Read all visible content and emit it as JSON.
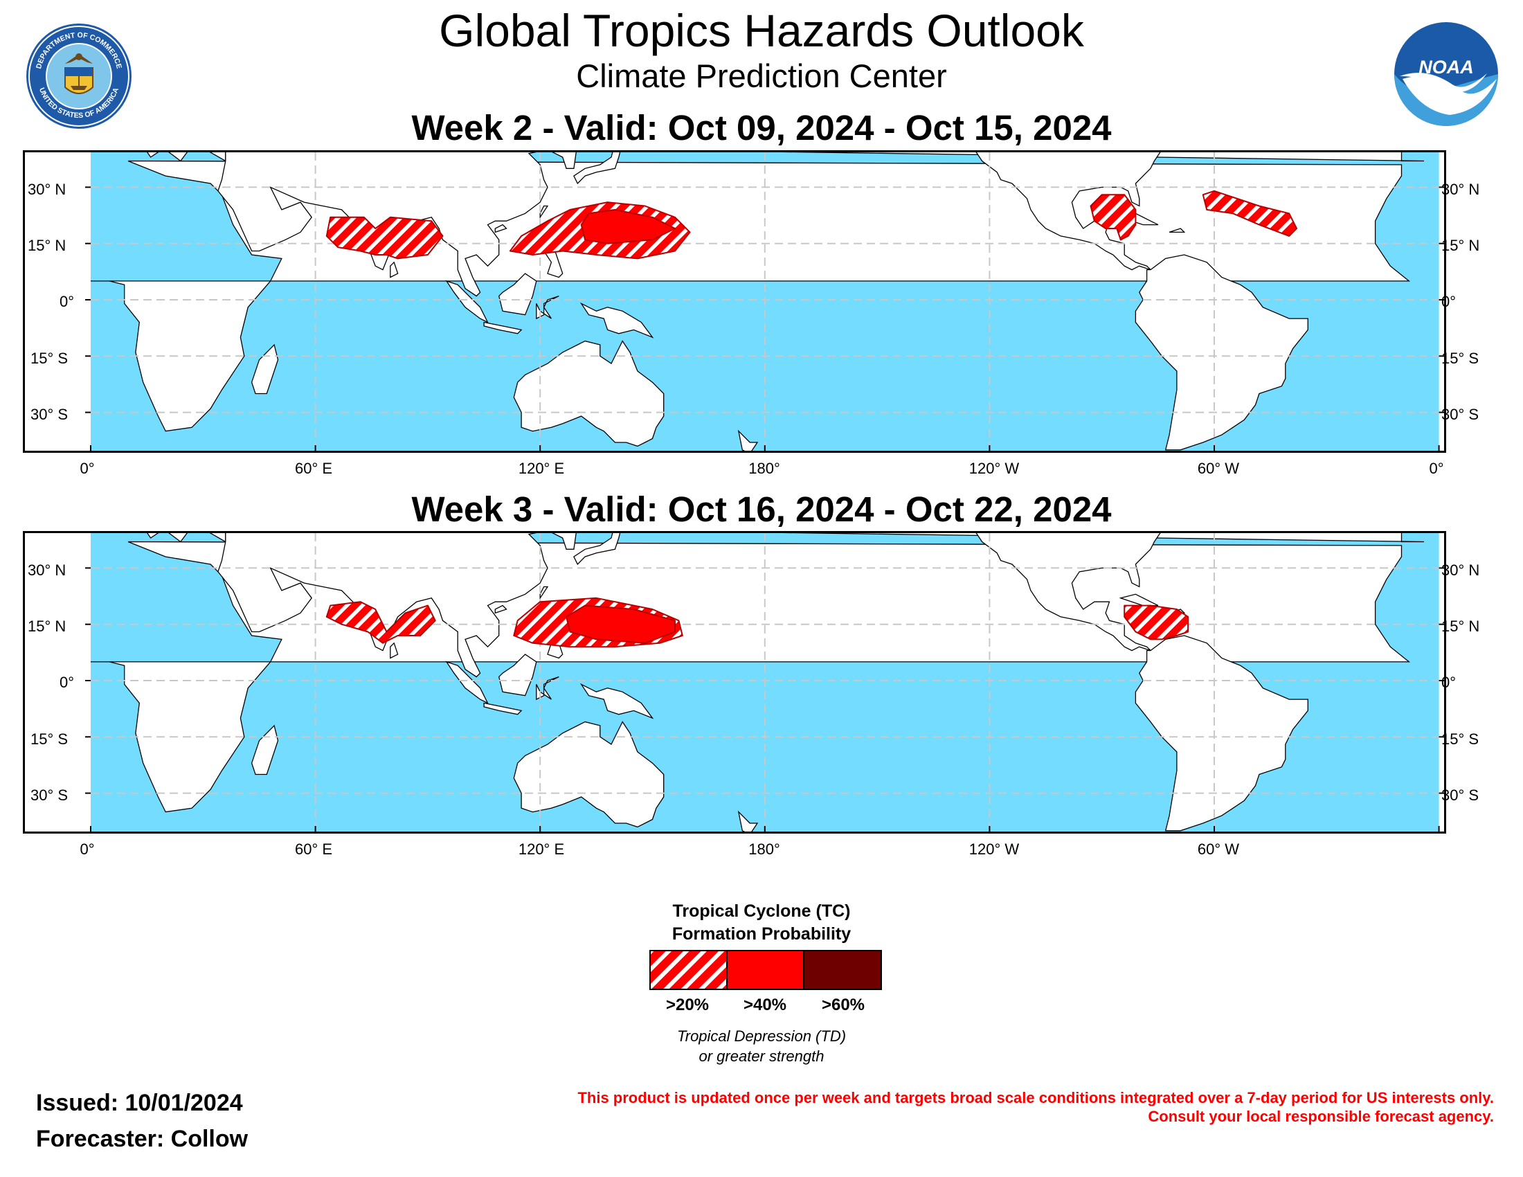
{
  "header": {
    "title": "Global Tropics Hazards Outlook",
    "subtitle": "Climate Prediction Center",
    "left_logo": {
      "icon": "department-of-commerce-seal-icon",
      "text_top": "DEPARTMENT OF COMMERCE",
      "text_bottom": "UNITED STATES OF AMERICA"
    },
    "right_logo": {
      "icon": "noaa-logo-icon",
      "text": "NOAA"
    }
  },
  "colors": {
    "ocean": "#73dcff",
    "land": "#ffffff",
    "border": "#000000",
    "grid": "#c8c8c8",
    "prob_20": "#ff0000",
    "prob_40": "#ff0000",
    "prob_60": "#6e0000"
  },
  "maps": [
    {
      "title": "Week 2 - Valid: Oct 09, 2024 - Oct 15, 2024",
      "lat_labels_left": [
        "30° N",
        "15° N",
        "0°",
        "15° S",
        "30° S"
      ],
      "lat_labels_right": [
        "30° N",
        "15° N",
        "0°",
        "15° S",
        "30° S"
      ],
      "lon_labels": [
        "0°",
        "60° E",
        "120° E",
        "180°",
        "120° W",
        "60° W",
        "0°"
      ],
      "hazards": [
        {
          "region": "Arabian Sea and Bay of Bengal",
          "probability": ">20%"
        },
        {
          "region": "Western North Pacific",
          "probability": ">20%"
        },
        {
          "region": "Western North Pacific core",
          "probability": ">40%"
        },
        {
          "region": "Gulf of Mexico and Western Caribbean",
          "probability": ">20%"
        },
        {
          "region": "Central Atlantic",
          "probability": ">20%"
        }
      ]
    },
    {
      "title": "Week 3 - Valid: Oct 16, 2024 - Oct 22, 2024",
      "lat_labels_left": [
        "30° N",
        "15° N",
        "0°",
        "15° S",
        "30° S"
      ],
      "lat_labels_right": [
        "30° N",
        "15° N",
        "0°",
        "15° S",
        "30° S"
      ],
      "lon_labels": [
        "0°",
        "60° E",
        "120° E",
        "180°",
        "120° W",
        "60° W"
      ],
      "hazards": [
        {
          "region": "Arabian Sea and Bay of Bengal",
          "probability": ">20%"
        },
        {
          "region": "Western North Pacific",
          "probability": ">20%"
        },
        {
          "region": "Western North Pacific core",
          "probability": ">40%"
        },
        {
          "region": "Caribbean Sea",
          "probability": ">20%"
        }
      ]
    }
  ],
  "legend": {
    "title_line1": "Tropical Cyclone (TC)",
    "title_line2": "Formation Probability",
    "items": [
      {
        "label": ">20%",
        "style": "hatched"
      },
      {
        "label": ">40%",
        "style": "solid"
      },
      {
        "label": ">60%",
        "style": "dark"
      }
    ],
    "note_line1": "Tropical Depression (TD)",
    "note_line2": "or greater strength"
  },
  "footer": {
    "issued": "Issued: 10/01/2024",
    "forecaster": "Forecaster: Collow",
    "disclaimer_line1": "This product is updated once per week and targets broad scale conditions integrated over a 7-day period for US interests only.",
    "disclaimer_line2": "Consult your local responsible forecast agency."
  }
}
